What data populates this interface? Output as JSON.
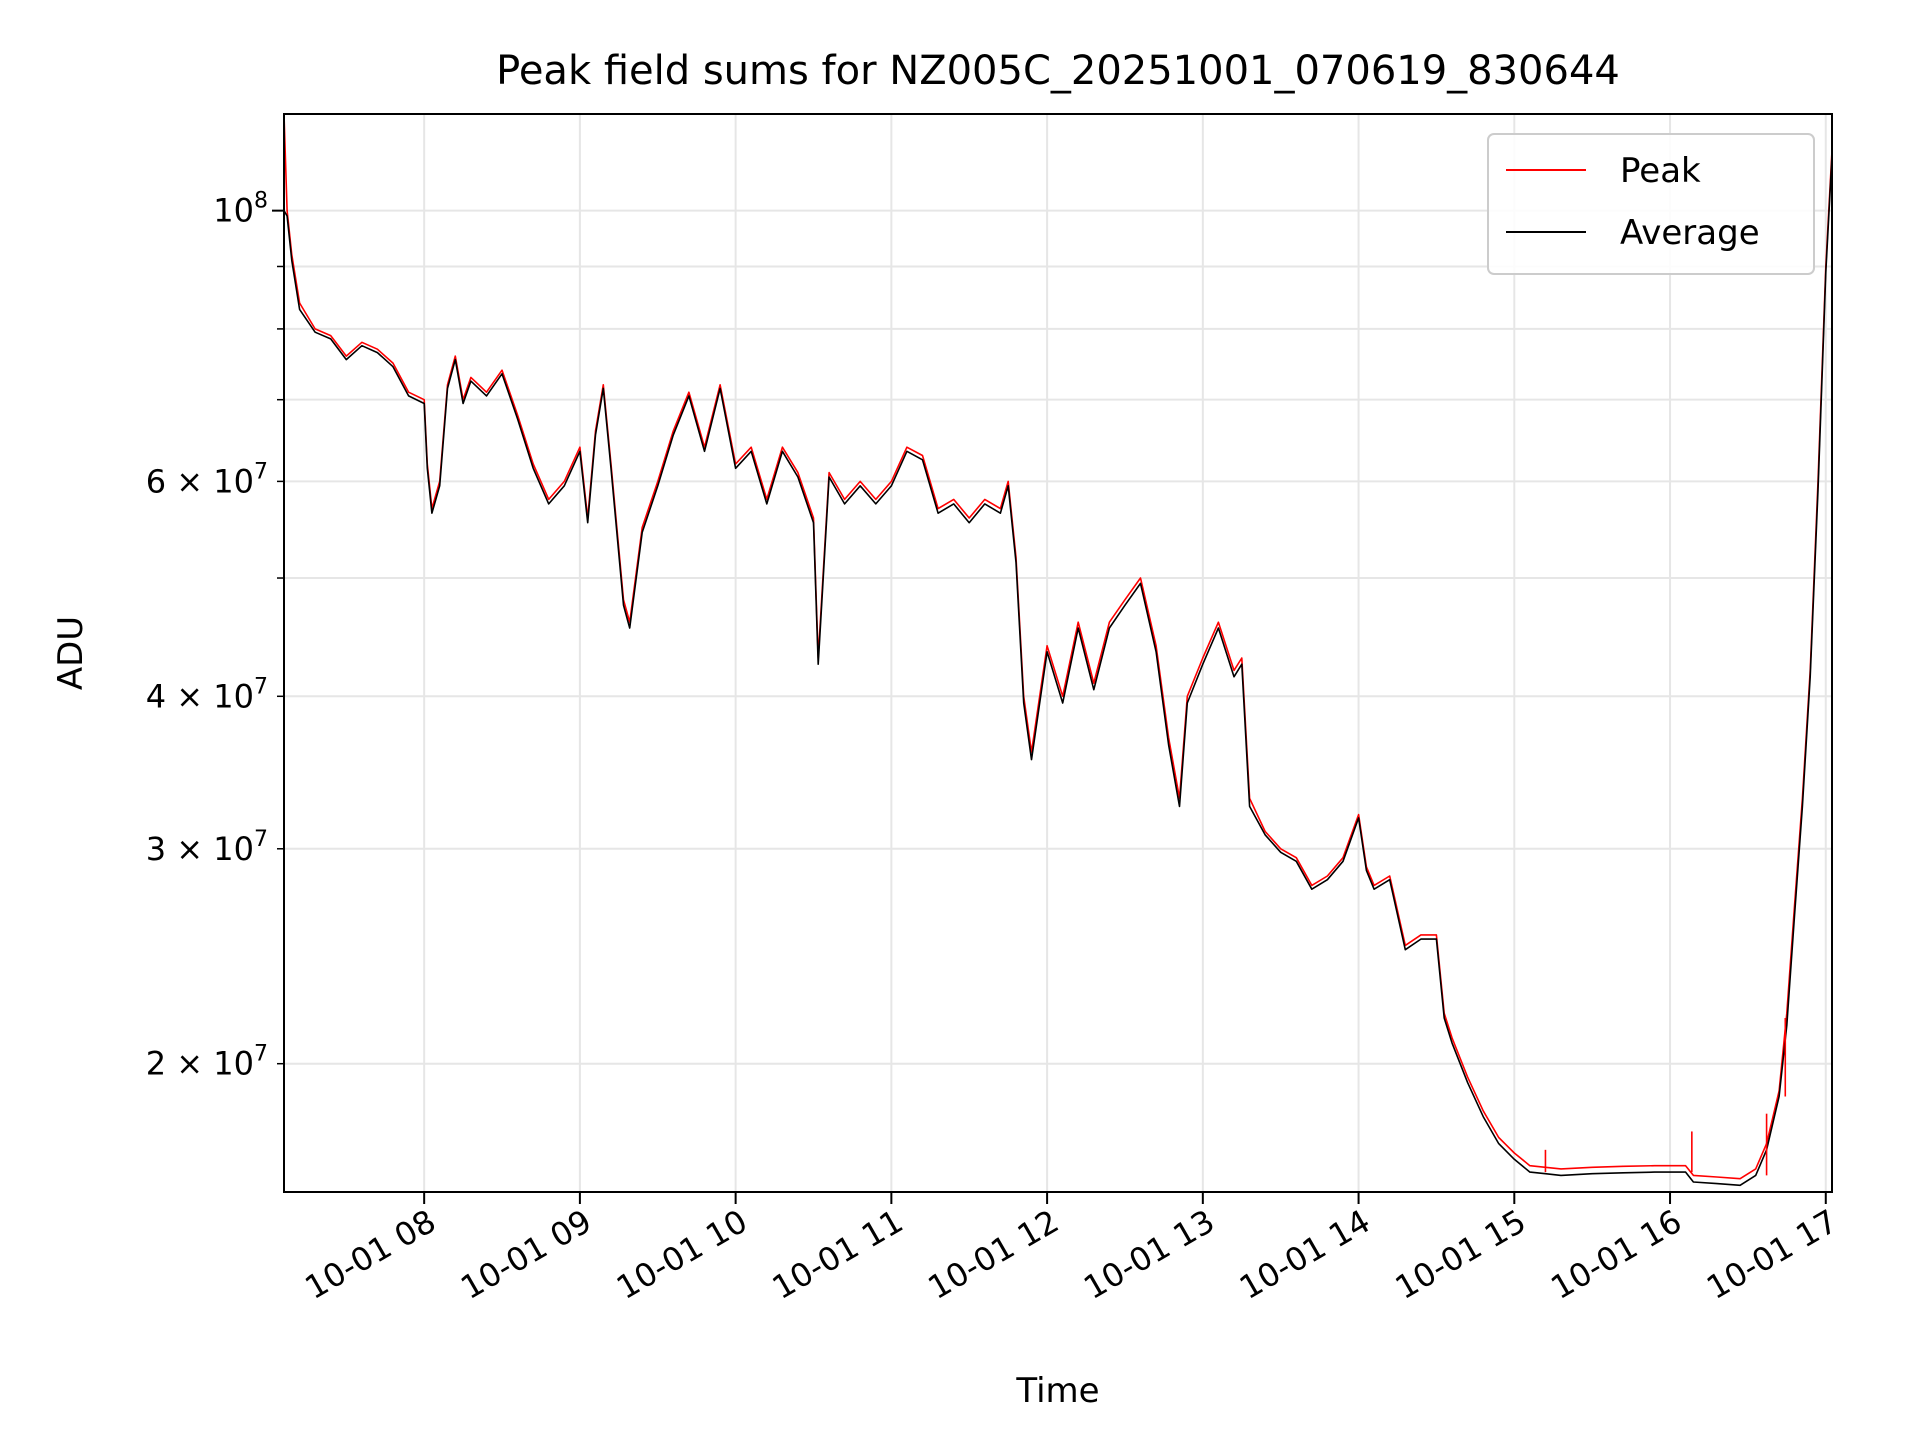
{
  "chart_data": {
    "type": "line",
    "title": "Peak field sums for NZ005C_20251001_070619_830644",
    "xlabel": "Time",
    "ylabel": "ADU",
    "yscale": "log",
    "x_range_hours": [
      7.1,
      17.04
    ],
    "ylim": [
      15700000,
      120000000
    ],
    "xticks": [
      {
        "value": 8,
        "label": "10-01 08"
      },
      {
        "value": 9,
        "label": "10-01 09"
      },
      {
        "value": 10,
        "label": "10-01 10"
      },
      {
        "value": 11,
        "label": "10-01 11"
      },
      {
        "value": 12,
        "label": "10-01 12"
      },
      {
        "value": 13,
        "label": "10-01 13"
      },
      {
        "value": 14,
        "label": "10-01 14"
      },
      {
        "value": 15,
        "label": "10-01 15"
      },
      {
        "value": 16,
        "label": "10-01 16"
      },
      {
        "value": 17,
        "label": "10-01 17"
      }
    ],
    "yticks_major": [
      {
        "value": 100000000,
        "mantissa": "",
        "exp": "8",
        "base": "10"
      }
    ],
    "yticks_minor": [
      {
        "value": 20000000,
        "mantissa": "2 × ",
        "exp": "7",
        "base": "10"
      },
      {
        "value": 30000000,
        "mantissa": "3 × ",
        "exp": "7",
        "base": "10"
      },
      {
        "value": 40000000,
        "mantissa": "4 × ",
        "exp": "7",
        "base": "10"
      },
      {
        "value": 50000000,
        "mantissa": "",
        "exp": "",
        "base": ""
      },
      {
        "value": 60000000,
        "mantissa": "6 × ",
        "exp": "7",
        "base": "10"
      },
      {
        "value": 70000000,
        "mantissa": "",
        "exp": "",
        "base": ""
      },
      {
        "value": 80000000,
        "mantissa": "",
        "exp": "",
        "base": ""
      },
      {
        "value": 90000000,
        "mantissa": "",
        "exp": "",
        "base": ""
      }
    ],
    "grid": true,
    "legend_position": "top-right",
    "series": [
      {
        "name": "Peak",
        "color": "#ff0000"
      },
      {
        "name": "Average",
        "color": "#000000"
      }
    ],
    "x_hours": [
      7.1,
      7.12,
      7.15,
      7.2,
      7.3,
      7.4,
      7.5,
      7.6,
      7.7,
      7.8,
      7.9,
      8.0,
      8.02,
      8.05,
      8.1,
      8.15,
      8.2,
      8.25,
      8.3,
      8.4,
      8.5,
      8.6,
      8.7,
      8.8,
      8.9,
      9.0,
      9.05,
      9.1,
      9.15,
      9.2,
      9.28,
      9.32,
      9.4,
      9.5,
      9.6,
      9.7,
      9.8,
      9.9,
      10.0,
      10.1,
      10.2,
      10.3,
      10.4,
      10.5,
      10.53,
      10.6,
      10.7,
      10.8,
      10.9,
      11.0,
      11.1,
      11.2,
      11.3,
      11.4,
      11.5,
      11.6,
      11.7,
      11.75,
      11.8,
      11.85,
      11.9,
      12.0,
      12.1,
      12.2,
      12.3,
      12.4,
      12.5,
      12.6,
      12.7,
      12.78,
      12.85,
      12.9,
      13.0,
      13.1,
      13.2,
      13.25,
      13.3,
      13.4,
      13.5,
      13.6,
      13.7,
      13.8,
      13.9,
      14.0,
      14.05,
      14.1,
      14.2,
      14.3,
      14.4,
      14.5,
      14.55,
      14.6,
      14.7,
      14.8,
      14.9,
      15.0,
      15.1,
      15.2,
      15.3,
      15.5,
      15.7,
      15.9,
      16.1,
      16.15,
      16.3,
      16.45,
      16.55,
      16.62,
      16.7,
      16.75,
      16.8,
      16.85,
      16.9,
      16.95,
      17.0,
      17.04
    ],
    "peak": [
      120000000,
      100000000,
      92000000,
      84000000,
      80000000,
      79000000,
      76000000,
      78000000,
      77000000,
      75000000,
      71000000,
      70000000,
      62000000,
      57000000,
      60000000,
      72000000,
      76000000,
      70000000,
      73000000,
      71000000,
      74000000,
      68000000,
      62000000,
      58000000,
      60000000,
      64000000,
      56000000,
      66000000,
      72000000,
      62000000,
      48000000,
      46000000,
      55000000,
      60000000,
      66000000,
      71000000,
      64000000,
      72000000,
      62000000,
      64000000,
      58000000,
      64000000,
      61000000,
      56000000,
      43000000,
      61000000,
      58000000,
      60000000,
      58000000,
      60000000,
      64000000,
      63000000,
      57000000,
      58000000,
      56000000,
      58000000,
      57000000,
      60000000,
      52000000,
      40000000,
      36000000,
      44000000,
      40000000,
      46000000,
      41000000,
      46000000,
      48000000,
      50000000,
      44000000,
      37000000,
      33000000,
      40000000,
      43000000,
      46000000,
      42000000,
      43000000,
      33000000,
      31000000,
      30000000,
      29500000,
      28000000,
      28500000,
      29500000,
      32000000,
      29000000,
      28000000,
      28500000,
      25000000,
      25500000,
      25500000,
      22000000,
      21000000,
      19500000,
      18300000,
      17400000,
      16900000,
      16500000,
      16450000,
      16400000,
      16450000,
      16480000,
      16500000,
      16500000,
      16200000,
      16150000,
      16100000,
      16400000,
      17200000,
      19000000,
      22000000,
      27000000,
      33000000,
      42000000,
      60000000,
      90000000,
      112000000
    ],
    "average": [
      100000000,
      99000000,
      91000000,
      83000000,
      79500000,
      78500000,
      75500000,
      77500000,
      76500000,
      74500000,
      70500000,
      69500000,
      61500000,
      56500000,
      59500000,
      71500000,
      75500000,
      69500000,
      72500000,
      70500000,
      73500000,
      67500000,
      61500000,
      57500000,
      59500000,
      63500000,
      55500000,
      65500000,
      71500000,
      61500000,
      47500000,
      45500000,
      54500000,
      59500000,
      65500000,
      70500000,
      63500000,
      71500000,
      61500000,
      63500000,
      57500000,
      63500000,
      60500000,
      55500000,
      42500000,
      60500000,
      57500000,
      59500000,
      57500000,
      59500000,
      63500000,
      62500000,
      56500000,
      57500000,
      55500000,
      57500000,
      56500000,
      59500000,
      51500000,
      39500000,
      35500000,
      43500000,
      39500000,
      45500000,
      40500000,
      45500000,
      47500000,
      49500000,
      43500000,
      36500000,
      32500000,
      39500000,
      42500000,
      45500000,
      41500000,
      42500000,
      32500000,
      30800000,
      29800000,
      29300000,
      27800000,
      28300000,
      29300000,
      31800000,
      28800000,
      27800000,
      28300000,
      24800000,
      25300000,
      25300000,
      21800000,
      20800000,
      19300000,
      18100000,
      17200000,
      16700000,
      16300000,
      16250000,
      16200000,
      16250000,
      16280000,
      16300000,
      16300000,
      16000000,
      15950000,
      15900000,
      16200000,
      17000000,
      18800000,
      21500000,
      26500000,
      32500000,
      41500000,
      59000000,
      89000000,
      111000000
    ],
    "peak_spikes": [
      {
        "x": 15.2,
        "value": 17000000
      },
      {
        "x": 16.14,
        "value": 17600000
      },
      {
        "x": 16.62,
        "value": 18200000
      },
      {
        "x": 16.74,
        "value": 21800000
      }
    ]
  }
}
